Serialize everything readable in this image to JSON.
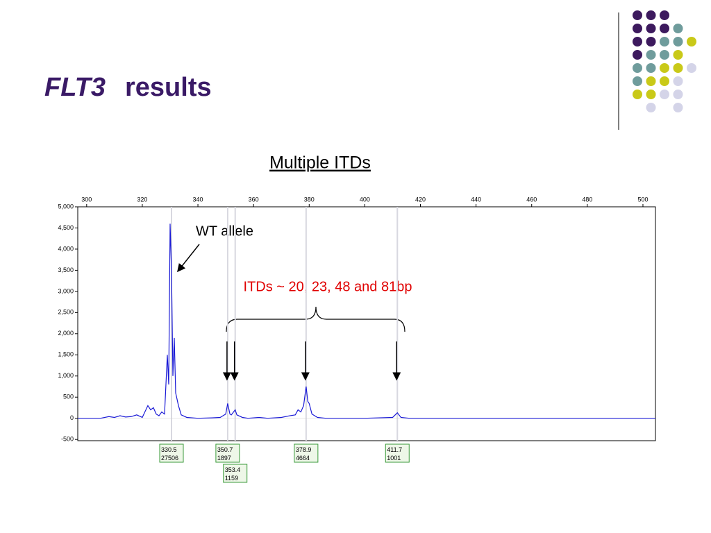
{
  "slide": {
    "title_italic": "FLT3",
    "title_rest": "results"
  },
  "chart_data": {
    "type": "line",
    "title": "Multiple ITDs",
    "x": [
      296.8,
      305,
      308,
      310,
      312,
      314,
      316,
      318,
      320,
      322,
      323,
      324,
      325,
      326,
      327,
      328,
      329,
      329.5,
      330,
      330.5,
      331,
      331.5,
      332,
      333,
      334,
      336,
      340,
      345,
      348,
      350,
      350.7,
      351.5,
      352,
      353.4,
      354,
      356,
      358,
      362,
      365,
      370,
      373,
      375,
      376,
      377,
      378,
      378.9,
      379.5,
      380,
      381,
      383,
      386,
      400,
      410,
      411.7,
      413,
      416,
      504.5
    ],
    "series": [
      {
        "name": "trace",
        "color": "#1a1ad6",
        "values": [
          0,
          0,
          40,
          20,
          60,
          30,
          40,
          80,
          20,
          300,
          200,
          250,
          100,
          60,
          150,
          100,
          1500,
          800,
          4600,
          3500,
          1000,
          1900,
          600,
          300,
          80,
          20,
          0,
          10,
          20,
          100,
          350,
          100,
          80,
          200,
          80,
          20,
          0,
          20,
          0,
          20,
          60,
          80,
          200,
          150,
          300,
          750,
          400,
          350,
          100,
          20,
          0,
          0,
          20,
          130,
          20,
          0,
          0
        ]
      }
    ],
    "xlim": [
      296.8,
      504.5
    ],
    "ylim": [
      -530,
      5000
    ],
    "xticks": [
      300,
      320,
      340,
      360,
      380,
      400,
      420,
      440,
      460,
      480,
      500
    ],
    "yticks": [
      {
        "value": 5000,
        "label": "5,000"
      },
      {
        "value": 4500,
        "label": "4,500"
      },
      {
        "value": 4000,
        "label": "4,000"
      },
      {
        "value": 3500,
        "label": "3,500"
      },
      {
        "value": 3000,
        "label": "3,000"
      },
      {
        "value": 2500,
        "label": "2,500"
      },
      {
        "value": 2000,
        "label": "2,000"
      },
      {
        "value": 1500,
        "label": "1,500"
      },
      {
        "value": 1000,
        "label": "1,000"
      },
      500,
      0,
      -500
    ],
    "peaks": [
      {
        "size": 330.5,
        "area": 27506
      },
      {
        "size": 350.7,
        "area": 1897
      },
      {
        "size": 353.4,
        "area": 1159
      },
      {
        "size": 378.9,
        "area": 4664
      },
      {
        "size": 411.7,
        "area": 1001
      }
    ],
    "annotations": [
      "WT allele",
      "ITDs ~ 20, 23, 48 and 81bp"
    ]
  }
}
